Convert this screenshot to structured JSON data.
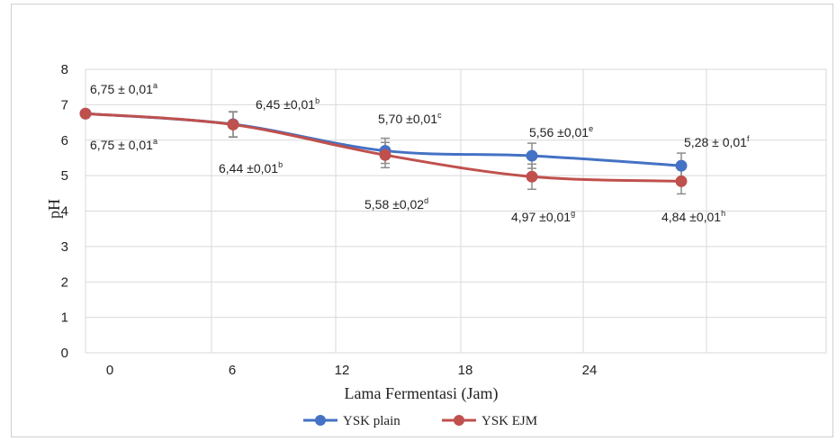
{
  "chart_data": {
    "type": "line",
    "title": "",
    "xlabel": "Lama Fermentasi (Jam)",
    "ylabel": "pH",
    "ylim": [
      0,
      8
    ],
    "yticks": [
      0,
      1,
      2,
      3,
      4,
      5,
      6,
      7,
      8
    ],
    "xticks": [
      "0",
      "6",
      "12",
      "18",
      "24"
    ],
    "x": [
      0,
      6,
      12,
      18,
      24
    ],
    "grid": true,
    "legend_position": "bottom",
    "series": [
      {
        "name": "YSK plain",
        "color": "#4472C4",
        "values": [
          6.75,
          6.45,
          5.7,
          5.56,
          5.28
        ],
        "labels": [
          {
            "text": "6,75 ± 0,01",
            "sup": "a"
          },
          {
            "text": "6,45 ±0,01",
            "sup": "b"
          },
          {
            "text": "5,70 ±0,01",
            "sup": "c"
          },
          {
            "text": "5,56 ±0,01",
            "sup": "e"
          },
          {
            "text": "5,28 ± 0,01",
            "sup": "f"
          }
        ]
      },
      {
        "name": "YSK EJM",
        "color": "#C0504D",
        "values": [
          6.75,
          6.44,
          5.58,
          4.97,
          4.84
        ],
        "labels": [
          {
            "text": "6,75 ± 0,01",
            "sup": "a"
          },
          {
            "text": "6,44 ±0,01",
            "sup": "b"
          },
          {
            "text": "5,58 ±0,02",
            "sup": "d"
          },
          {
            "text": "4,97 ±0,01",
            "sup": "g"
          },
          {
            "text": "4,84 ±0,01",
            "sup": "h"
          }
        ]
      }
    ]
  }
}
